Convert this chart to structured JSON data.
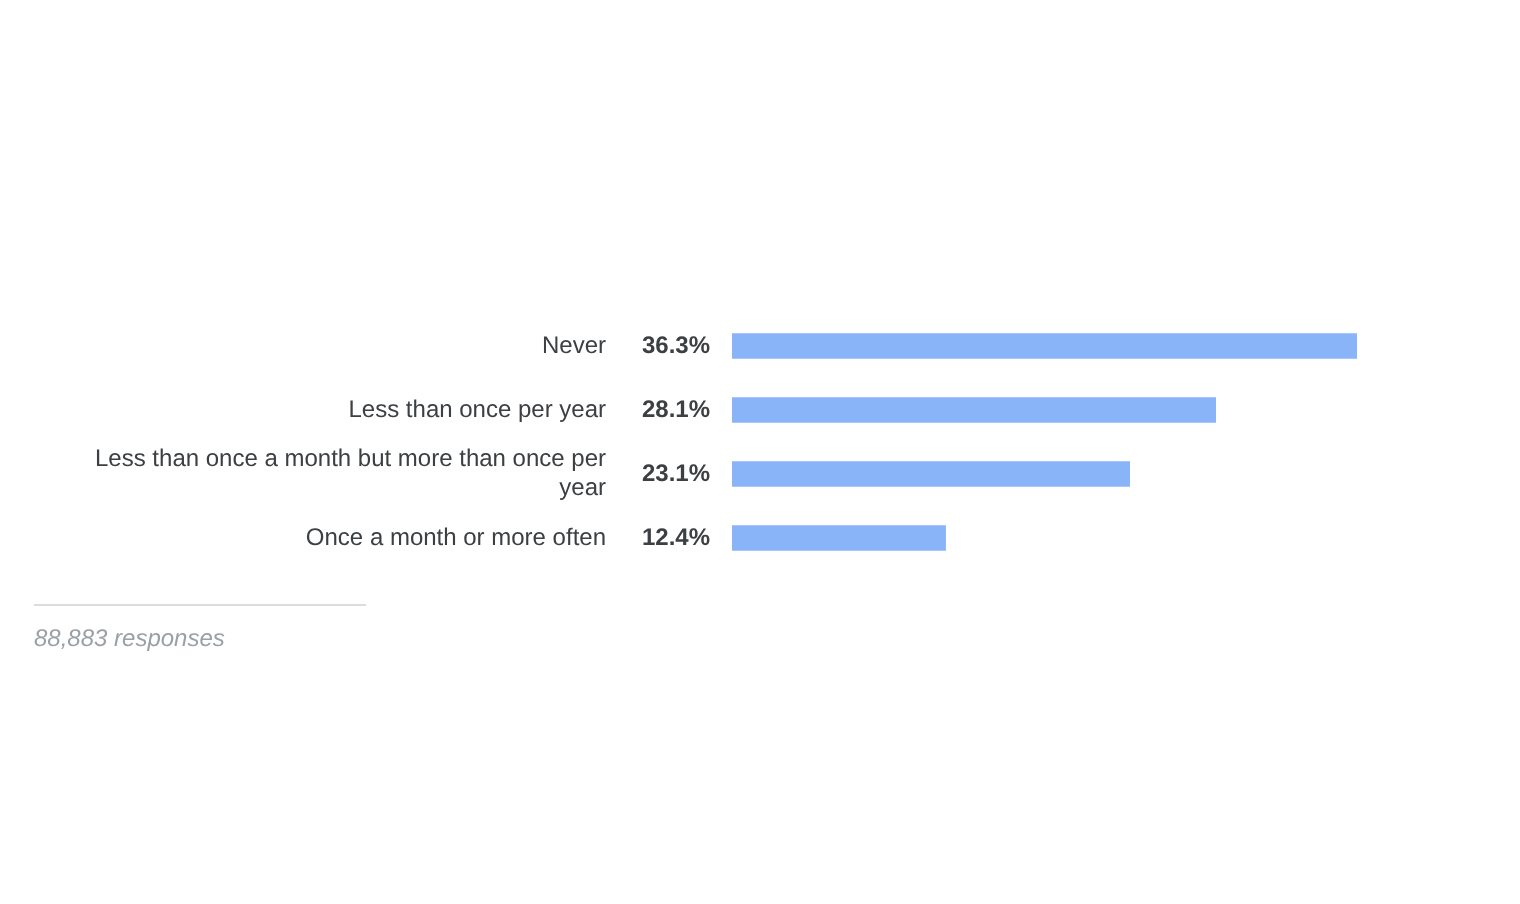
{
  "chart_data": {
    "type": "bar",
    "orientation": "horizontal",
    "categories": [
      "Never",
      "Less than once per year",
      "Less than once a month but more than once per year",
      "Once a month or more often"
    ],
    "values": [
      36.3,
      28.1,
      23.1,
      12.4
    ],
    "value_labels": [
      "36.3%",
      "28.1%",
      "23.1%",
      "12.4%"
    ],
    "color": "#8ab4f8",
    "legend": false,
    "tick_labels": "y",
    "annotations": [
      "88,883 responses"
    ]
  }
}
